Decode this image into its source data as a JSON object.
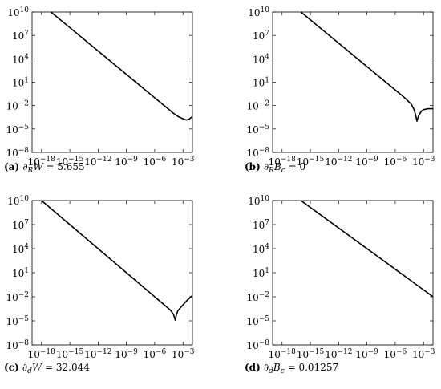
{
  "chart_data": [
    {
      "type": "line",
      "caption": {
        "letter": "(a)",
        "math": "∂RW",
        "sym": "∂",
        "var": "W",
        "sub": "R",
        "value": "= 5.655"
      },
      "xscale": "log",
      "yscale": "log",
      "xlim": [
        1e-19,
        0.01
      ],
      "ylim": [
        1e-08,
        10000000000.0
      ],
      "xticks": [
        "10−18",
        "10−15",
        "10−12",
        "10−9",
        "10−6",
        "10−3"
      ],
      "yticks": [
        "1010",
        "107",
        "104",
        "101",
        "10−2",
        "10−5",
        "10−8"
      ],
      "x": [
        1e-17,
        1e-15,
        1e-13,
        1e-11,
        1e-09,
        1e-07,
        1e-05,
        0.0001,
        0.0003,
        0.001,
        0.002,
        0.003,
        0.005,
        0.01
      ],
      "y": [
        10000000000.0,
        100000000.0,
        1000000.0,
        10000,
        100,
        1,
        0.01,
        0.001,
        0.0004,
        0.0002,
        0.00015,
        0.00015,
        0.0002,
        0.0004
      ]
    },
    {
      "type": "line",
      "caption": {
        "letter": "(b)",
        "math": "∂RBc",
        "sym": "∂",
        "var": "B",
        "sub": "R",
        "varsub": "c",
        "value": "= 0"
      },
      "xscale": "log",
      "yscale": "log",
      "xlim": [
        1e-19,
        0.01
      ],
      "ylim": [
        1e-08,
        10000000000.0
      ],
      "xticks": [
        "10−18",
        "10−15",
        "10−12",
        "10−9",
        "10−6",
        "10−3"
      ],
      "yticks": [
        "1010",
        "107",
        "104",
        "101",
        "10−2",
        "10−5",
        "10−8"
      ],
      "x": [
        1e-16,
        1e-14,
        1e-12,
        1e-10,
        1e-08,
        1e-06,
        1e-05,
        5e-05,
        0.0001,
        0.00015,
        0.0002,
        0.0003,
        0.0006,
        0.001,
        0.003,
        0.01
      ],
      "y": [
        10000000000.0,
        100000000.0,
        1000000.0,
        10000,
        100,
        1,
        0.1,
        0.015,
        0.003,
        0.0005,
        0.0001,
        0.0005,
        0.002,
        0.003,
        0.004,
        0.004
      ]
    },
    {
      "type": "line",
      "caption": {
        "letter": "(c)",
        "math": "∂dW",
        "sym": "∂",
        "var": "W",
        "sub": "d",
        "value": "= 32.044"
      },
      "xscale": "log",
      "yscale": "log",
      "xlim": [
        1e-19,
        0.01
      ],
      "ylim": [
        1e-08,
        10000000000.0
      ],
      "xticks": [
        "10−18",
        "10−15",
        "10−12",
        "10−9",
        "10−6",
        "10−3"
      ],
      "yticks": [
        "1010",
        "107",
        "104",
        "101",
        "10−2",
        "10−5",
        "10−8"
      ],
      "x": [
        1e-18,
        1e-16,
        1e-14,
        1e-12,
        1e-10,
        1e-08,
        1e-06,
        1e-05,
        5e-05,
        0.0001,
        0.00015,
        0.0002,
        0.0003,
        0.001,
        0.003,
        0.01
      ],
      "y": [
        10000000000.0,
        100000000.0,
        1000000.0,
        10000,
        100,
        1,
        0.01,
        0.001,
        0.0002,
        6e-05,
        1.2e-05,
        6e-05,
        0.0002,
        0.001,
        0.004,
        0.015
      ]
    },
    {
      "type": "line",
      "caption": {
        "letter": "(d)",
        "math": "∂dBc",
        "sym": "∂",
        "var": "B",
        "sub": "d",
        "varsub": "c",
        "value": "= 0.01257"
      },
      "xscale": "log",
      "yscale": "log",
      "xlim": [
        1e-19,
        0.01
      ],
      "ylim": [
        1e-08,
        10000000000.0
      ],
      "xticks": [
        "10−18",
        "10−15",
        "10−12",
        "10−9",
        "10−6",
        "10−3"
      ],
      "yticks": [
        "1010",
        "107",
        "104",
        "101",
        "10−2",
        "10−5",
        "10−8"
      ],
      "x": [
        1e-16,
        0.01
      ],
      "y": [
        10000000000.0,
        0.01
      ]
    }
  ]
}
